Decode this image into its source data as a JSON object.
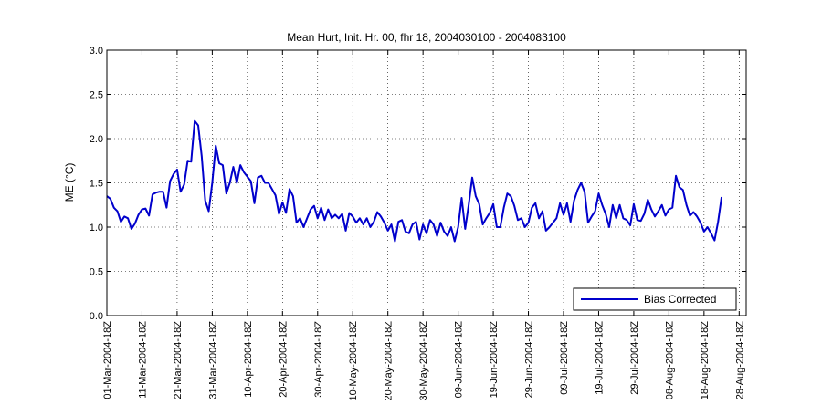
{
  "chart_data": {
    "type": "line",
    "title": "Mean Hurt, Init. Hr. 00, fhr 18, 2004030100 - 2004083100",
    "xlabel": "",
    "ylabel": "ME (°C)",
    "ylim": [
      0,
      3
    ],
    "xlim": [
      0,
      182
    ],
    "grid": true,
    "legend_position": "bottom-right",
    "line_color": "#0000cc",
    "y_ticks": [
      "0.0",
      "0.5",
      "1.0",
      "1.5",
      "2.0",
      "2.5",
      "3.0"
    ],
    "x_ticks": [
      {
        "x": 0,
        "label": "01-Mar-2004-18Z"
      },
      {
        "x": 10,
        "label": "11-Mar-2004-18Z"
      },
      {
        "x": 20,
        "label": "21-Mar-2004-18Z"
      },
      {
        "x": 30,
        "label": "31-Mar-2004-18Z"
      },
      {
        "x": 40,
        "label": "10-Apr-2004-18Z"
      },
      {
        "x": 50,
        "label": "20-Apr-2004-18Z"
      },
      {
        "x": 60,
        "label": "30-Apr-2004-18Z"
      },
      {
        "x": 70,
        "label": "10-May-2004-18Z"
      },
      {
        "x": 80,
        "label": "20-May-2004-18Z"
      },
      {
        "x": 90,
        "label": "30-May-2004-18Z"
      },
      {
        "x": 100,
        "label": "09-Jun-2004-18Z"
      },
      {
        "x": 110,
        "label": "19-Jun-2004-18Z"
      },
      {
        "x": 120,
        "label": "29-Jun-2004-18Z"
      },
      {
        "x": 130,
        "label": "09-Jul-2004-18Z"
      },
      {
        "x": 140,
        "label": "19-Jul-2004-18Z"
      },
      {
        "x": 150,
        "label": "29-Jul-2004-18Z"
      },
      {
        "x": 160,
        "label": "08-Aug-2004-18Z"
      },
      {
        "x": 170,
        "label": "18-Aug-2004-18Z"
      },
      {
        "x": 180,
        "label": "28-Aug-2004-18Z"
      }
    ],
    "series": [
      {
        "name": "Bias Corrected",
        "values": [
          1.35,
          1.32,
          1.22,
          1.18,
          1.06,
          1.12,
          1.1,
          0.98,
          1.04,
          1.14,
          1.2,
          1.21,
          1.13,
          1.37,
          1.39,
          1.4,
          1.4,
          1.22,
          1.52,
          1.6,
          1.65,
          1.4,
          1.48,
          1.75,
          1.74,
          2.2,
          2.15,
          1.8,
          1.3,
          1.18,
          1.5,
          1.92,
          1.72,
          1.7,
          1.38,
          1.5,
          1.68,
          1.5,
          1.7,
          1.62,
          1.57,
          1.52,
          1.27,
          1.56,
          1.58,
          1.5,
          1.5,
          1.43,
          1.36,
          1.15,
          1.28,
          1.16,
          1.43,
          1.35,
          1.05,
          1.1,
          1.0,
          1.1,
          1.2,
          1.24,
          1.1,
          1.22,
          1.08,
          1.2,
          1.1,
          1.14,
          1.1,
          1.15,
          0.96,
          1.16,
          1.12,
          1.05,
          1.1,
          1.03,
          1.1,
          1.0,
          1.06,
          1.17,
          1.12,
          1.05,
          0.96,
          1.03,
          0.84,
          1.06,
          1.08,
          0.95,
          0.93,
          1.03,
          1.06,
          0.86,
          1.03,
          0.93,
          1.08,
          1.03,
          0.9,
          1.05,
          0.95,
          0.9,
          1.0,
          0.84,
          1.0,
          1.33,
          0.98,
          1.25,
          1.56,
          1.35,
          1.26,
          1.03,
          1.1,
          1.16,
          1.26,
          1.0,
          1.0,
          1.22,
          1.38,
          1.35,
          1.24,
          1.08,
          1.1,
          1.0,
          1.05,
          1.22,
          1.27,
          1.1,
          1.18,
          0.96,
          1.0,
          1.05,
          1.1,
          1.27,
          1.14,
          1.27,
          1.06,
          1.3,
          1.42,
          1.5,
          1.4,
          1.05,
          1.12,
          1.18,
          1.38,
          1.25,
          1.15,
          1.0,
          1.25,
          1.1,
          1.25,
          1.1,
          1.08,
          1.02,
          1.26,
          1.08,
          1.07,
          1.15,
          1.31,
          1.2,
          1.12,
          1.18,
          1.25,
          1.13,
          1.2,
          1.22,
          1.58,
          1.45,
          1.42,
          1.25,
          1.13,
          1.17,
          1.12,
          1.05,
          0.95,
          1.0,
          0.93,
          0.85,
          1.06,
          1.34
        ]
      }
    ]
  }
}
